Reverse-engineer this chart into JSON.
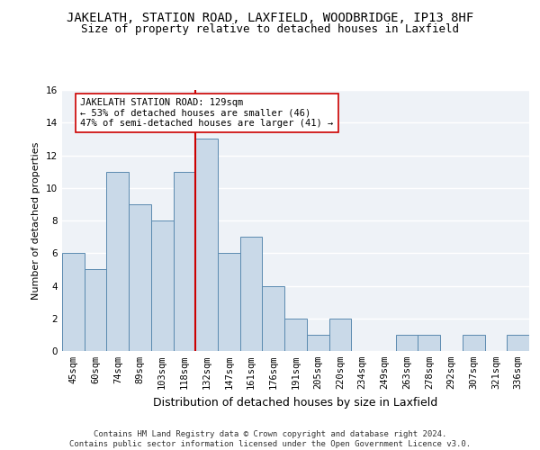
{
  "title1": "JAKELATH, STATION ROAD, LAXFIELD, WOODBRIDGE, IP13 8HF",
  "title2": "Size of property relative to detached houses in Laxfield",
  "xlabel": "Distribution of detached houses by size in Laxfield",
  "ylabel": "Number of detached properties",
  "categories": [
    "45sqm",
    "60sqm",
    "74sqm",
    "89sqm",
    "103sqm",
    "118sqm",
    "132sqm",
    "147sqm",
    "161sqm",
    "176sqm",
    "191sqm",
    "205sqm",
    "220sqm",
    "234sqm",
    "249sqm",
    "263sqm",
    "278sqm",
    "292sqm",
    "307sqm",
    "321sqm",
    "336sqm"
  ],
  "values": [
    6,
    5,
    11,
    9,
    8,
    11,
    13,
    6,
    7,
    4,
    2,
    1,
    2,
    0,
    0,
    1,
    1,
    0,
    1,
    0,
    1
  ],
  "bar_color": "#c9d9e8",
  "bar_edge_color": "#5a8ab0",
  "vline_index": 6,
  "vline_color": "#cc0000",
  "ylim": [
    0,
    16
  ],
  "yticks": [
    0,
    2,
    4,
    6,
    8,
    10,
    12,
    14,
    16
  ],
  "annotation_text": "JAKELATH STATION ROAD: 129sqm\n← 53% of detached houses are smaller (46)\n47% of semi-detached houses are larger (41) →",
  "annotation_box_color": "#ffffff",
  "annotation_box_edge": "#cc0000",
  "footer1": "Contains HM Land Registry data © Crown copyright and database right 2024.",
  "footer2": "Contains public sector information licensed under the Open Government Licence v3.0.",
  "background_color": "#eef2f7",
  "grid_color": "#ffffff",
  "title1_fontsize": 10,
  "title2_fontsize": 9,
  "xlabel_fontsize": 9,
  "ylabel_fontsize": 8,
  "tick_fontsize": 7.5,
  "annotation_fontsize": 7.5,
  "footer_fontsize": 6.5
}
